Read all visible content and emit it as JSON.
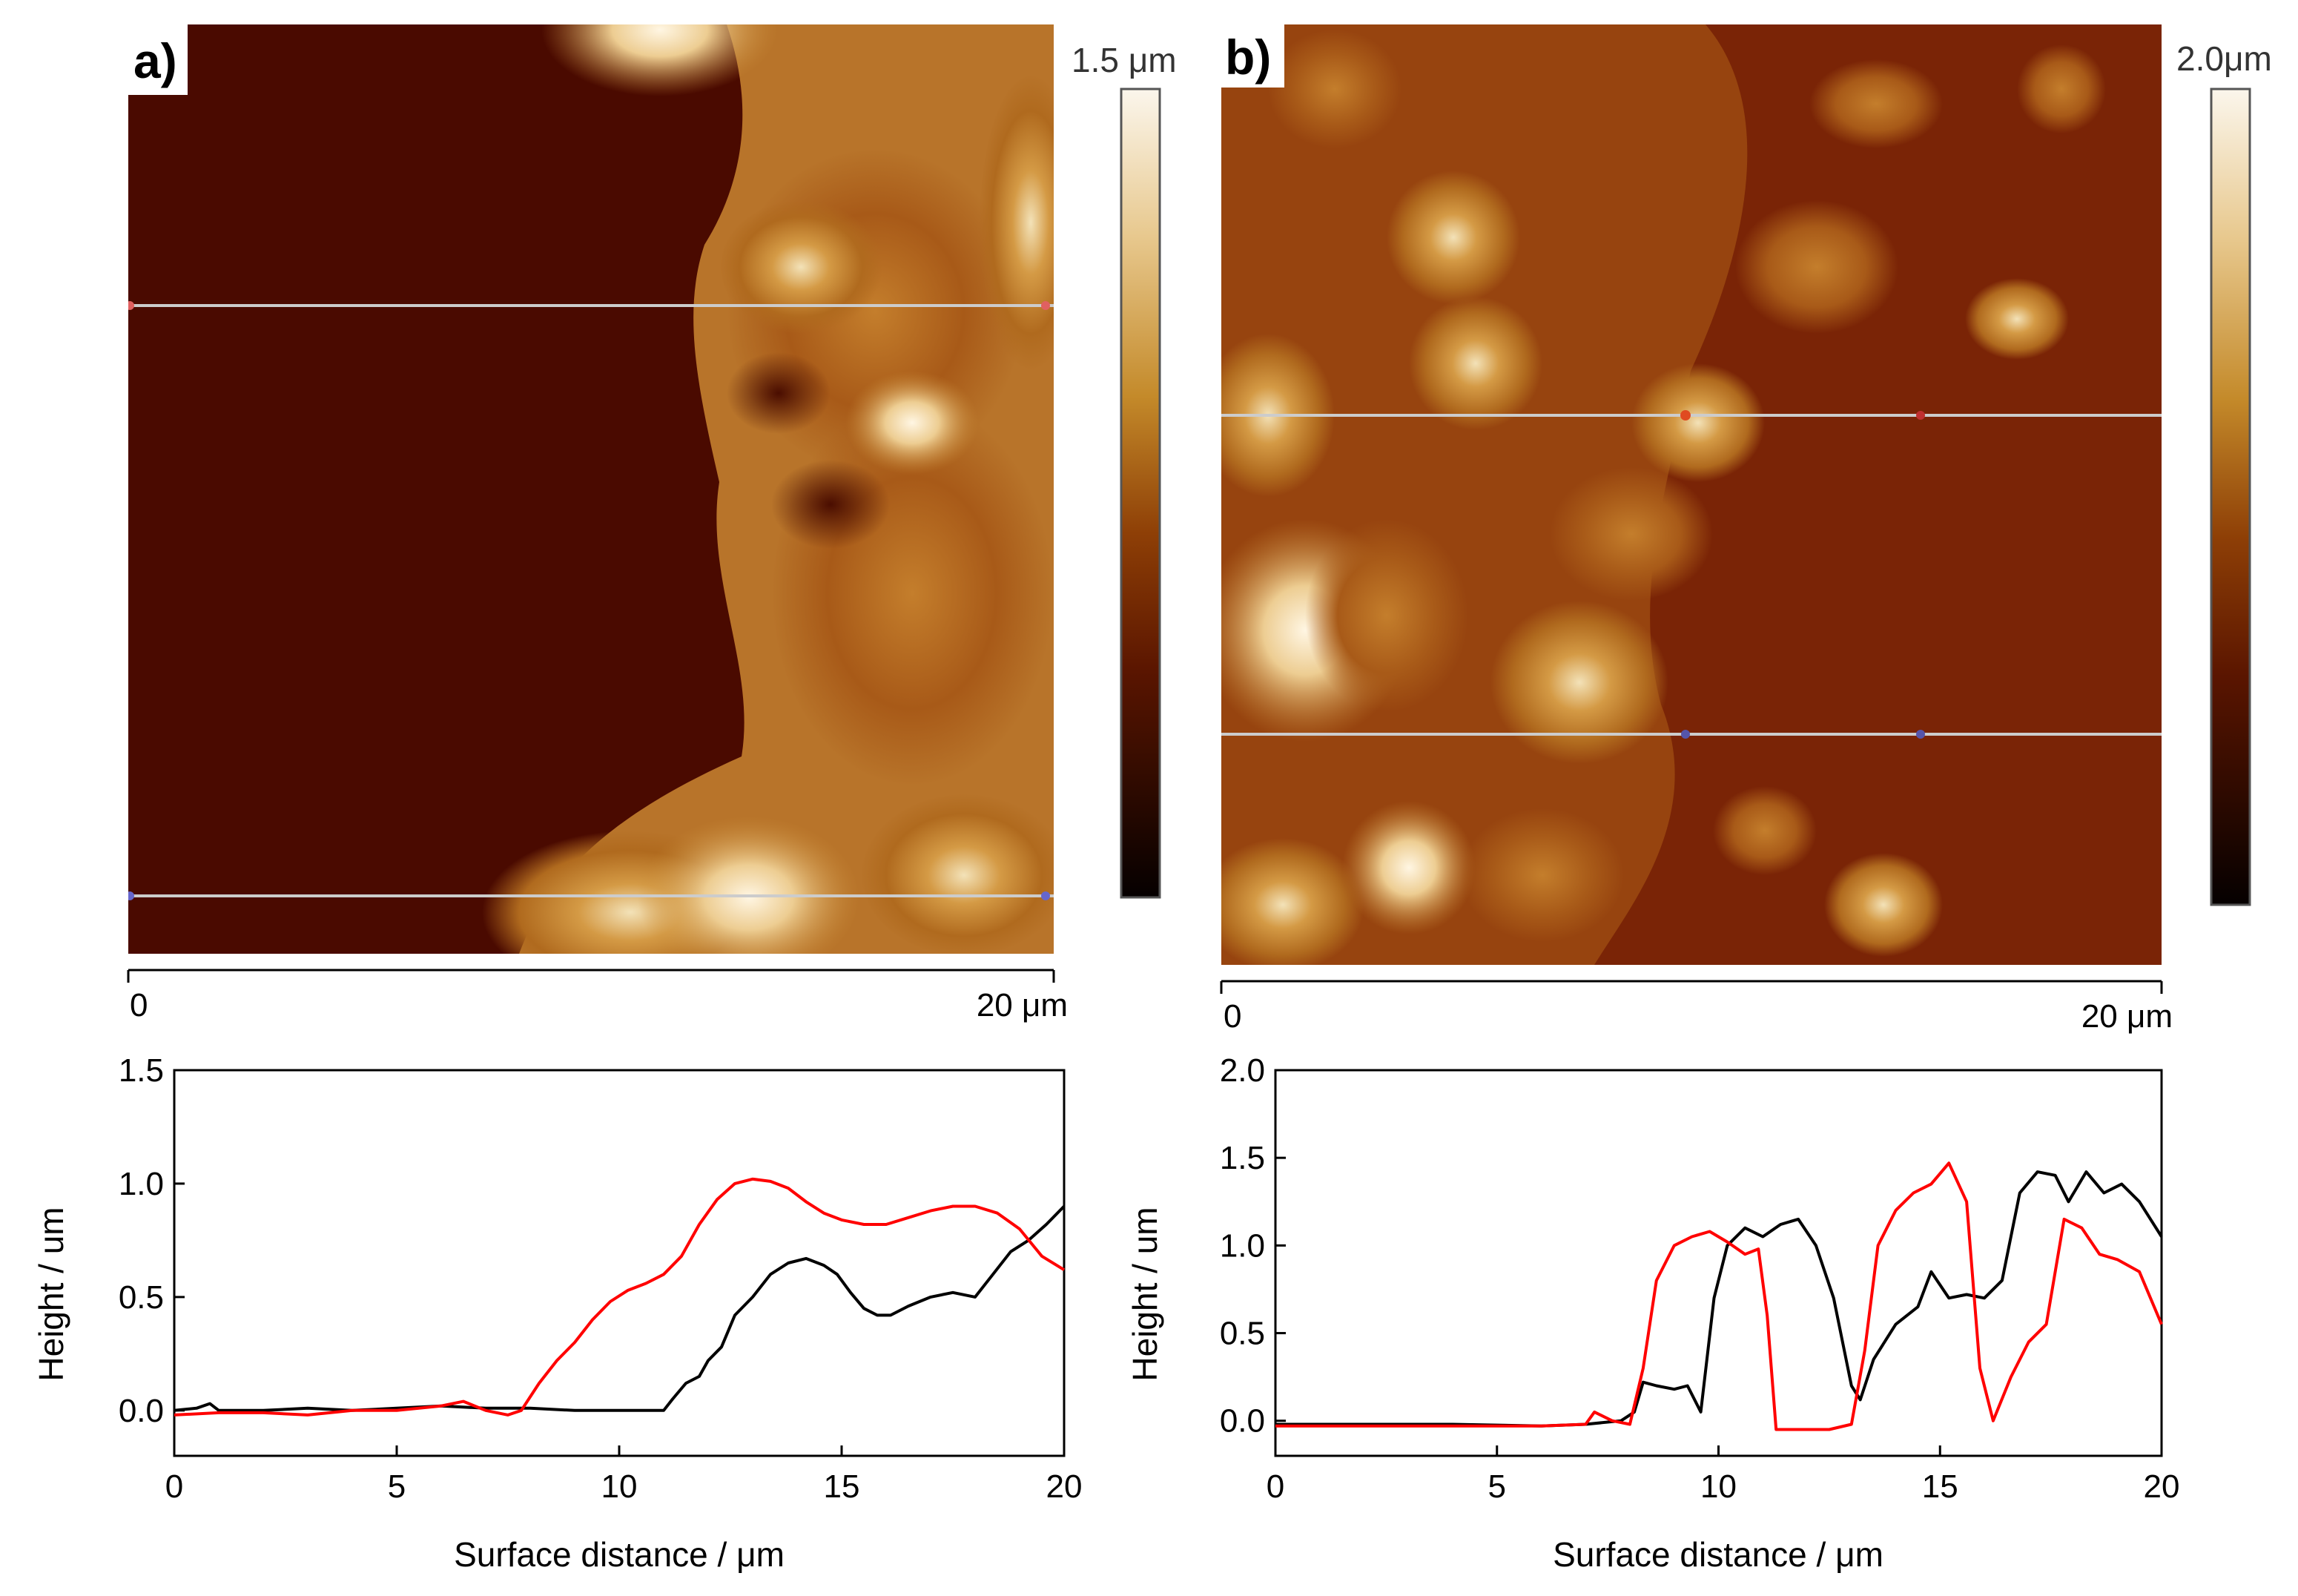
{
  "panels": [
    {
      "id": "a",
      "label": "a)",
      "colorbar_max_label": "1.5 μm",
      "scale_start": "0",
      "scale_end": "20 μm",
      "colors": {
        "dark": "#1c0000",
        "mid": "#7a2a00",
        "bright": "#c48a2a",
        "light": "#f7efdd"
      }
    },
    {
      "id": "b",
      "label": "b)",
      "colorbar_max_label": "2.0μm",
      "scale_start": "0",
      "scale_end": "20 μm",
      "colors": {
        "dark": "#1c0000",
        "mid": "#7a2a00",
        "bright": "#c48a2a",
        "light": "#f7efdd"
      }
    }
  ],
  "chart_data": [
    {
      "type": "line",
      "panel": "a",
      "xlabel": "Surface distance / μm",
      "ylabel": "Height / um",
      "xlim": [
        0,
        20
      ],
      "ylim": [
        -0.2,
        1.5
      ],
      "xticks": [
        0,
        5,
        10,
        15,
        20
      ],
      "xtick_labels": [
        "0",
        "5",
        "10",
        "15",
        "20"
      ],
      "yticks": [
        0.0,
        0.5,
        1.0,
        1.5
      ],
      "ytick_labels": [
        "0.0",
        "0.5",
        "1.0",
        "1.5"
      ],
      "series": [
        {
          "name": "black profile",
          "color": "#000000",
          "x": [
            0,
            0.5,
            0.8,
            1,
            2,
            3,
            4,
            5,
            6,
            7,
            8,
            9,
            10,
            10.5,
            11,
            11.2,
            11.5,
            11.8,
            12,
            12.3,
            12.6,
            13,
            13.4,
            13.8,
            14.2,
            14.6,
            14.9,
            15.2,
            15.5,
            15.8,
            16.1,
            16.5,
            17,
            17.5,
            18,
            18.4,
            18.8,
            19.2,
            19.6,
            20
          ],
          "values": [
            0.0,
            0.01,
            0.03,
            0.0,
            0.0,
            0.01,
            0.0,
            0.01,
            0.02,
            0.01,
            0.01,
            0.0,
            0.0,
            0.0,
            0.0,
            0.05,
            0.12,
            0.15,
            0.22,
            0.28,
            0.42,
            0.5,
            0.6,
            0.65,
            0.67,
            0.64,
            0.6,
            0.52,
            0.45,
            0.42,
            0.42,
            0.46,
            0.5,
            0.52,
            0.5,
            0.6,
            0.7,
            0.75,
            0.82,
            0.9
          ]
        },
        {
          "name": "red profile",
          "color": "#ff0000",
          "x": [
            0,
            1,
            2,
            3,
            4,
            5,
            6,
            6.5,
            7,
            7.5,
            7.8,
            8.2,
            8.6,
            9,
            9.4,
            9.8,
            10.2,
            10.6,
            11,
            11.4,
            11.8,
            12.2,
            12.6,
            13,
            13.4,
            13.8,
            14.2,
            14.6,
            15,
            15.5,
            16,
            16.5,
            17,
            17.5,
            18,
            18.5,
            19,
            19.5,
            20
          ],
          "values": [
            -0.02,
            -0.01,
            -0.01,
            -0.02,
            0.0,
            0.0,
            0.02,
            0.04,
            0.0,
            -0.02,
            0.0,
            0.12,
            0.22,
            0.3,
            0.4,
            0.48,
            0.53,
            0.56,
            0.6,
            0.68,
            0.82,
            0.93,
            1.0,
            1.02,
            1.01,
            0.98,
            0.92,
            0.87,
            0.84,
            0.82,
            0.82,
            0.85,
            0.88,
            0.9,
            0.9,
            0.87,
            0.8,
            0.68,
            0.62
          ]
        }
      ]
    },
    {
      "type": "line",
      "panel": "b",
      "xlabel": "Surface distance / μm",
      "ylabel": "Height / um",
      "xlim": [
        0,
        20
      ],
      "ylim": [
        -0.2,
        2.0
      ],
      "xticks": [
        0,
        5,
        10,
        15,
        20
      ],
      "xtick_labels": [
        "0",
        "5",
        "10",
        "15",
        "20"
      ],
      "yticks": [
        0.0,
        0.5,
        1.0,
        1.5,
        2.0
      ],
      "ytick_labels": [
        "0.0",
        "0.5",
        "1.0",
        "1.5",
        "2.0"
      ],
      "series": [
        {
          "name": "black profile",
          "color": "#000000",
          "x": [
            0,
            2,
            4,
            6,
            7,
            7.8,
            8.1,
            8.3,
            8.6,
            9,
            9.3,
            9.6,
            9.9,
            10.2,
            10.6,
            11,
            11.4,
            11.8,
            12.2,
            12.6,
            13,
            13.2,
            13.5,
            14,
            14.5,
            14.8,
            15.2,
            15.6,
            16,
            16.4,
            16.8,
            17.2,
            17.6,
            17.9,
            18.3,
            18.7,
            19.1,
            19.5,
            20
          ],
          "values": [
            -0.02,
            -0.02,
            -0.02,
            -0.03,
            -0.02,
            0.0,
            0.05,
            0.22,
            0.2,
            0.18,
            0.2,
            0.05,
            0.7,
            1.0,
            1.1,
            1.05,
            1.12,
            1.15,
            1.0,
            0.7,
            0.2,
            0.12,
            0.35,
            0.55,
            0.65,
            0.85,
            0.7,
            0.72,
            0.7,
            0.8,
            1.3,
            1.42,
            1.4,
            1.25,
            1.42,
            1.3,
            1.35,
            1.25,
            1.05
          ]
        },
        {
          "name": "red profile",
          "color": "#ff0000",
          "x": [
            0,
            2,
            4,
            6,
            7,
            7.2,
            7.6,
            8,
            8.3,
            8.6,
            9,
            9.4,
            9.8,
            10.2,
            10.6,
            10.9,
            11.1,
            11.3,
            11.6,
            12,
            12.5,
            13,
            13.3,
            13.6,
            14,
            14.4,
            14.8,
            15.2,
            15.6,
            15.9,
            16.2,
            16.6,
            17,
            17.4,
            17.8,
            18.2,
            18.6,
            19,
            19.5,
            20
          ],
          "values": [
            -0.03,
            -0.03,
            -0.03,
            -0.03,
            -0.02,
            0.05,
            0.0,
            -0.02,
            0.3,
            0.8,
            1.0,
            1.05,
            1.08,
            1.02,
            0.95,
            0.98,
            0.6,
            -0.05,
            -0.05,
            -0.05,
            -0.05,
            -0.02,
            0.4,
            1.0,
            1.2,
            1.3,
            1.35,
            1.47,
            1.25,
            0.3,
            0.0,
            0.25,
            0.45,
            0.55,
            1.15,
            1.1,
            0.95,
            0.92,
            0.85,
            0.55
          ]
        }
      ]
    }
  ]
}
